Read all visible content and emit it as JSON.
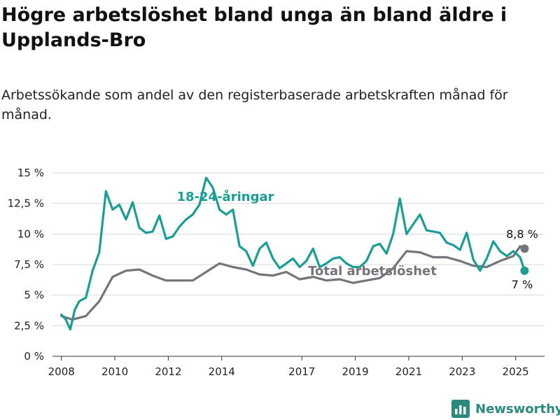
{
  "title": "Högre arbetslöshet bland unga än bland äldre i Upplands-Bro",
  "subtitle": "Arbetssökande som andel av den registerbaserade arbetskraften månad för månad.",
  "brand": "Newsworthy",
  "colors": {
    "youth": "#1a9e93",
    "total": "#77737a",
    "grid": "#d9d9d9",
    "axis": "#333333"
  },
  "chart_data": {
    "type": "line",
    "x_axis_ticks": [
      "2008",
      "2010",
      "2012",
      "2014",
      "2017",
      "2019",
      "2021",
      "2023",
      "2025"
    ],
    "y_axis_ticks": [
      "0 %",
      "2,5 %",
      "5 %",
      "7,5 %",
      "10 %",
      "12,5 %",
      "15 %"
    ],
    "ylim": [
      0,
      15
    ],
    "xlim": [
      "2007-09",
      "2026-02"
    ],
    "grid": true,
    "series": [
      {
        "name": "18-24-åringar",
        "color": "#1a9e93",
        "x": [
          "2008-01",
          "2008-03",
          "2008-05",
          "2008-07",
          "2008-09",
          "2008-12",
          "2009-03",
          "2009-06",
          "2009-09",
          "2009-12",
          "2010-03",
          "2010-06",
          "2010-09",
          "2010-12",
          "2011-03",
          "2011-06",
          "2011-09",
          "2011-12",
          "2012-03",
          "2012-06",
          "2012-09",
          "2012-12",
          "2013-03",
          "2013-06",
          "2013-09",
          "2013-12",
          "2014-03",
          "2014-06",
          "2014-09",
          "2014-12",
          "2015-03",
          "2015-06",
          "2015-09",
          "2015-12",
          "2016-03",
          "2016-06",
          "2016-09",
          "2016-12",
          "2017-03",
          "2017-06",
          "2017-09",
          "2017-12",
          "2018-03",
          "2018-06",
          "2018-09",
          "2018-12",
          "2019-03",
          "2019-06",
          "2019-09",
          "2019-12",
          "2020-03",
          "2020-06",
          "2020-09",
          "2020-12",
          "2021-03",
          "2021-06",
          "2021-09",
          "2021-12",
          "2022-03",
          "2022-06",
          "2022-09",
          "2022-12",
          "2023-03",
          "2023-06",
          "2023-09",
          "2023-12",
          "2024-03",
          "2024-06",
          "2024-09",
          "2024-12",
          "2025-03",
          "2025-05"
        ],
        "y": [
          3.4,
          3.0,
          2.2,
          3.8,
          4.5,
          4.8,
          7.0,
          8.5,
          13.5,
          12.0,
          12.4,
          11.2,
          12.6,
          10.5,
          10.1,
          10.2,
          11.5,
          9.6,
          9.8,
          10.6,
          11.2,
          11.6,
          12.4,
          14.6,
          13.8,
          12.0,
          11.6,
          12.0,
          9.0,
          8.6,
          7.4,
          8.8,
          9.3,
          8.0,
          7.2,
          7.6,
          8.0,
          7.3,
          7.8,
          8.8,
          7.3,
          7.6,
          8.0,
          8.1,
          7.6,
          7.3,
          7.3,
          7.8,
          9.0,
          9.2,
          8.4,
          10.0,
          12.9,
          10.0,
          10.8,
          11.6,
          10.3,
          10.2,
          10.1,
          9.3,
          9.1,
          8.7,
          10.1,
          7.9,
          7.0,
          8.0,
          9.4,
          8.6,
          8.2,
          8.6,
          8.1,
          7.0
        ]
      },
      {
        "name": "Total arbetslöshet",
        "color": "#77737a",
        "x": [
          "2008-01",
          "2008-06",
          "2008-12",
          "2009-06",
          "2009-12",
          "2010-06",
          "2010-12",
          "2011-06",
          "2011-12",
          "2012-06",
          "2012-12",
          "2013-06",
          "2013-12",
          "2014-06",
          "2014-12",
          "2015-06",
          "2015-12",
          "2016-06",
          "2016-12",
          "2017-06",
          "2017-12",
          "2018-06",
          "2018-12",
          "2019-06",
          "2019-12",
          "2020-06",
          "2020-12",
          "2021-06",
          "2021-12",
          "2022-06",
          "2022-12",
          "2023-06",
          "2023-12",
          "2024-06",
          "2024-12",
          "2025-03",
          "2025-05"
        ],
        "y": [
          3.3,
          3.0,
          3.3,
          4.5,
          6.5,
          7.0,
          7.1,
          6.6,
          6.2,
          6.2,
          6.2,
          6.9,
          7.6,
          7.3,
          7.1,
          6.7,
          6.6,
          6.9,
          6.3,
          6.5,
          6.2,
          6.3,
          6.0,
          6.2,
          6.4,
          7.2,
          8.6,
          8.5,
          8.1,
          8.1,
          7.8,
          7.4,
          7.3,
          7.8,
          8.2,
          9.0,
          8.8
        ]
      }
    ],
    "labels": {
      "youth": "18-24-åringar",
      "total": "Total arbetslöshet",
      "youth_last": "7 %",
      "total_last": "8,8 %"
    }
  }
}
